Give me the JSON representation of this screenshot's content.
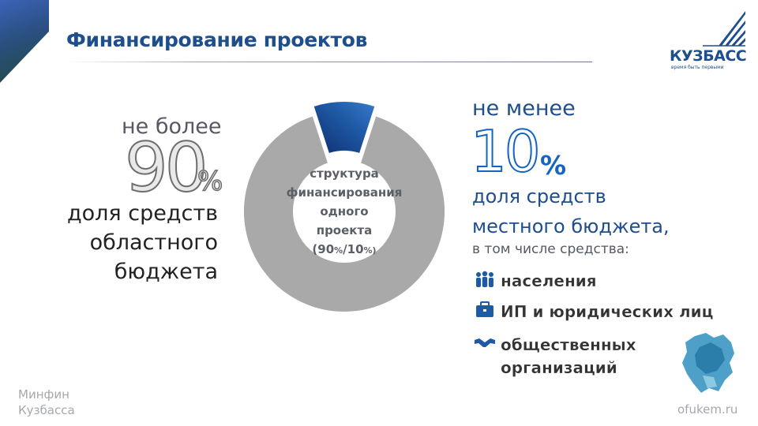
{
  "title": "Финансирование проектов",
  "logo": {
    "word": "КУЗБАСС",
    "tagline": "время быть первыми"
  },
  "left": {
    "intro": "не более",
    "number": "90",
    "percent": "%",
    "lines": [
      "доля средств",
      "областного",
      "бюджета"
    ]
  },
  "donut": {
    "line1": "структура",
    "line2": "финансирования",
    "line3": "одного",
    "line4": "проекта",
    "line5_open": "(90",
    "line5_pct1": "%",
    "line5_mid": "/10",
    "line5_pct2": "%)"
  },
  "right": {
    "intro": "не менее",
    "number": "10",
    "percent": "%",
    "line1": "доля средств",
    "line2": "местного бюджета,",
    "sub": "в том числе средства:",
    "items": [
      {
        "icon": "people-icon",
        "label": "населения"
      },
      {
        "icon": "briefcase-icon",
        "label": "ИП и юридических лиц"
      },
      {
        "icon": "handshake-icon",
        "label_line1": "общественных",
        "label_line2": "организаций"
      }
    ]
  },
  "footer": {
    "left_line1": "Минфин",
    "left_line2": "Кузбасса",
    "right": "ofukem.ru"
  },
  "chart_data": {
    "type": "pie",
    "categories": [
      "областной бюджет",
      "местный бюджет"
    ],
    "values": [
      90,
      10
    ],
    "colors": [
      "#a9a9a9",
      "#1f5aa6"
    ],
    "exploded": "местный бюджет"
  }
}
